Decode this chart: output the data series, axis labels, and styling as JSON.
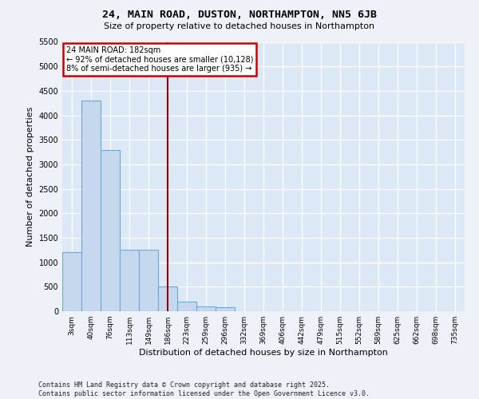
{
  "title": "24, MAIN ROAD, DUSTON, NORTHAMPTON, NN5 6JB",
  "subtitle": "Size of property relative to detached houses in Northampton",
  "xlabel": "Distribution of detached houses by size in Northampton",
  "ylabel": "Number of detached properties",
  "bar_color": "#c5d8ee",
  "bar_edge_color": "#6aaad4",
  "bg_color": "#dce8f5",
  "fig_color": "#eef2f8",
  "categories": [
    "3sqm",
    "40sqm",
    "76sqm",
    "113sqm",
    "149sqm",
    "186sqm",
    "223sqm",
    "259sqm",
    "296sqm",
    "332sqm",
    "369sqm",
    "406sqm",
    "442sqm",
    "479sqm",
    "515sqm",
    "552sqm",
    "589sqm",
    "625sqm",
    "662sqm",
    "698sqm",
    "735sqm"
  ],
  "values": [
    1200,
    4300,
    3300,
    1250,
    1250,
    500,
    200,
    100,
    80,
    0,
    0,
    0,
    0,
    0,
    0,
    0,
    0,
    0,
    0,
    0,
    0
  ],
  "ylim": [
    0,
    5500
  ],
  "yticks": [
    0,
    500,
    1000,
    1500,
    2000,
    2500,
    3000,
    3500,
    4000,
    4500,
    5000,
    5500
  ],
  "vline_x": 5,
  "vline_color": "#990000",
  "ann_line1": "24 MAIN ROAD: 182sqm",
  "ann_line2": "← 92% of detached houses are smaller (10,128)",
  "ann_line3": "8% of semi-detached houses are larger (935) →",
  "ann_fc": "#ffffff",
  "ann_ec": "#cc0000",
  "footer": "Contains HM Land Registry data © Crown copyright and database right 2025.\nContains public sector information licensed under the Open Government Licence v3.0."
}
